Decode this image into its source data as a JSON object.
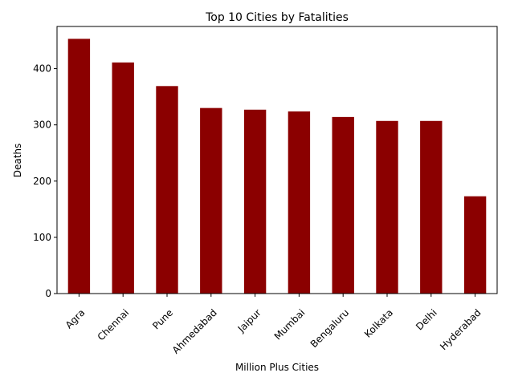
{
  "chart_data": {
    "type": "bar",
    "title": "Top 10 Cities by Fatalities",
    "xlabel": "Million Plus Cities",
    "ylabel": "Deaths",
    "categories": [
      "Agra",
      "Chennai",
      "Pune",
      "Ahmedabad",
      "Jaipur",
      "Mumbai",
      "Bengaluru",
      "Kolkata",
      "Delhi",
      "Hyderabad"
    ],
    "values": [
      453,
      411,
      369,
      330,
      327,
      324,
      314,
      307,
      307,
      173
    ],
    "ylim": [
      0,
      475
    ],
    "yticks": [
      0,
      100,
      200,
      300,
      400
    ],
    "grid": false,
    "legend": "none",
    "bar_color": "#8b0000",
    "x_tick_rotation": 45
  }
}
